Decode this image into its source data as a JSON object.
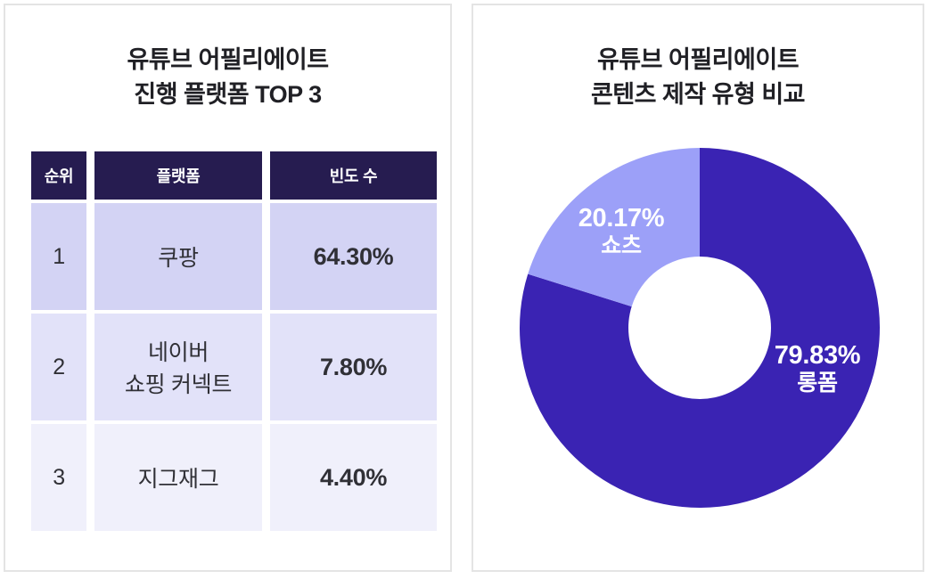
{
  "page": {
    "background": "#ffffff",
    "panel_border_color": "#e4e4e4",
    "title_color": "#202025"
  },
  "left_panel": {
    "title_line1": "유튜브 어필리에이트",
    "title_line2": "진행 플랫폼 TOP 3",
    "table_style": {
      "header_bg": "#261c50",
      "header_text_color": "#ffffff",
      "row_backgrounds": [
        "#d3d3f4",
        "#e2e2f9",
        "#f0f0fb"
      ],
      "cell_text_color": "#303036"
    }
  },
  "right_panel": {
    "title_line1": "유튜브 어필리에이트",
    "title_line2": "콘텐츠 제작 유형 비교"
  },
  "chart_data": [
    {
      "type": "table",
      "title": "유튜브 어필리에이트 진행 플랫폼 TOP 3",
      "columns": [
        "순위",
        "플랫폼",
        "빈도 수"
      ],
      "rows": [
        [
          "1",
          "쿠팡",
          "64.30%"
        ],
        [
          "2",
          "네이버\n쇼핑 커넥트",
          "7.80%"
        ],
        [
          "3",
          "지그재그",
          "4.40%"
        ]
      ]
    },
    {
      "type": "pie",
      "donut": true,
      "title": "유튜브 어필리에이트 콘텐츠 제작 유형 비교",
      "labels": [
        "롱폼",
        "쇼츠"
      ],
      "values": [
        79.83,
        20.17
      ],
      "display_values": [
        "79.83%",
        "20.17%"
      ],
      "colors": [
        "#3a23b3",
        "#9ca0f8"
      ],
      "label_text_color": "#ffffff",
      "start_angle_deg": 0,
      "direction": "clockwise",
      "legend": "none",
      "inner_radius_ratio": 0.396
    }
  ]
}
